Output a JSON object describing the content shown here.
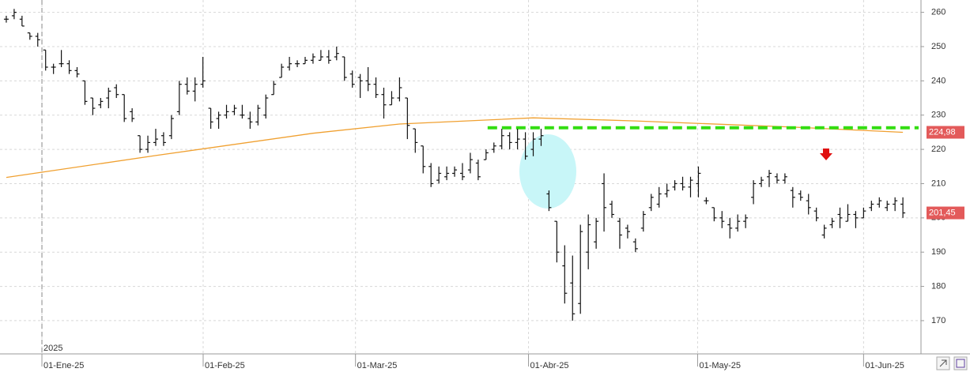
{
  "chart_data": {
    "type": "ohlc",
    "ohlc": [
      [
        258,
        259,
        257,
        258
      ],
      [
        259,
        261,
        258,
        260
      ],
      [
        258,
        259,
        256,
        256
      ],
      [
        254,
        254,
        252,
        253
      ],
      [
        253,
        254,
        250,
        252
      ],
      [
        249,
        249,
        243,
        244
      ],
      [
        244,
        245,
        242,
        244
      ],
      [
        245,
        249,
        244,
        245
      ],
      [
        245,
        246,
        242,
        243
      ],
      [
        243,
        244,
        241,
        242
      ],
      [
        240,
        240,
        233,
        234
      ],
      [
        235,
        235,
        230,
        232
      ],
      [
        233,
        235,
        232,
        234
      ],
      [
        235,
        238,
        232,
        237
      ],
      [
        238,
        239,
        235,
        236
      ],
      [
        236,
        236,
        228,
        229
      ],
      [
        231,
        232,
        228,
        229
      ],
      [
        224,
        224,
        219,
        220
      ],
      [
        220,
        224,
        219,
        222
      ],
      [
        222,
        226,
        221,
        223
      ],
      [
        224,
        225,
        221,
        222
      ],
      [
        224,
        230,
        223,
        229
      ],
      [
        231,
        240,
        230,
        239
      ],
      [
        239,
        241,
        236,
        237
      ],
      [
        237,
        241,
        234,
        239
      ],
      [
        239,
        247,
        238,
        240
      ],
      [
        232,
        232,
        226,
        228
      ],
      [
        229,
        231,
        226,
        230
      ],
      [
        230,
        233,
        229,
        231
      ],
      [
        231,
        233,
        230,
        232
      ],
      [
        230,
        233,
        229,
        230
      ],
      [
        229,
        231,
        226,
        228
      ],
      [
        228,
        233,
        227,
        232
      ],
      [
        230,
        236,
        229,
        235
      ],
      [
        236,
        240,
        236,
        239
      ],
      [
        241,
        245,
        241,
        244
      ],
      [
        244,
        247,
        243,
        245
      ],
      [
        245,
        246,
        244,
        245
      ],
      [
        245,
        247,
        245,
        246
      ],
      [
        246,
        248,
        245,
        247
      ],
      [
        246,
        249,
        246,
        247
      ],
      [
        247,
        249,
        245,
        246
      ],
      [
        247,
        250,
        246,
        248
      ],
      [
        247,
        247,
        240,
        241
      ],
      [
        242,
        243,
        238,
        239
      ],
      [
        241,
        242,
        235,
        240
      ],
      [
        240,
        244,
        237,
        239
      ],
      [
        239,
        241,
        235,
        236
      ],
      [
        236,
        238,
        229,
        233
      ],
      [
        233,
        237,
        233,
        235
      ],
      [
        235,
        241,
        234,
        238
      ],
      [
        235,
        235,
        223,
        227
      ],
      [
        226,
        226,
        219,
        222
      ],
      [
        221,
        221,
        213,
        215
      ],
      [
        215,
        216,
        209,
        210
      ],
      [
        211,
        215,
        210,
        213
      ],
      [
        212,
        215,
        211,
        213
      ],
      [
        213,
        215,
        212,
        214
      ],
      [
        213,
        216,
        211,
        212
      ],
      [
        214,
        219,
        213,
        217
      ],
      [
        216,
        217,
        211,
        212
      ],
      [
        217,
        220,
        217,
        219
      ],
      [
        220,
        222,
        219,
        221
      ],
      [
        221,
        226,
        220,
        224
      ],
      [
        224,
        225,
        220,
        222
      ],
      [
        222,
        226,
        220,
        223
      ],
      [
        223,
        225,
        217,
        218
      ],
      [
        220,
        225,
        218,
        223
      ],
      [
        223,
        226,
        221,
        224
      ],
      [
        207,
        208,
        202,
        203
      ],
      [
        199,
        199,
        187,
        190
      ],
      [
        186,
        192,
        175,
        178
      ],
      [
        181,
        189,
        170,
        172
      ],
      [
        175,
        198,
        172,
        196
      ],
      [
        190,
        201,
        185,
        198
      ],
      [
        193,
        200,
        191,
        199
      ],
      [
        210,
        213,
        196,
        203
      ],
      [
        204,
        205,
        200,
        201
      ],
      [
        199,
        200,
        191,
        195
      ],
      [
        197,
        198,
        194,
        196
      ],
      [
        193,
        194,
        190,
        191
      ],
      [
        197,
        202,
        196,
        201
      ],
      [
        203,
        207,
        202,
        206
      ],
      [
        204,
        209,
        203,
        207
      ],
      [
        207,
        210,
        206,
        208
      ],
      [
        209,
        211,
        208,
        210
      ],
      [
        210,
        212,
        208,
        209
      ],
      [
        209,
        212,
        206,
        211
      ],
      [
        210,
        215,
        206,
        213
      ],
      [
        205,
        206,
        204,
        205
      ],
      [
        203,
        203,
        199,
        200
      ],
      [
        200,
        202,
        197,
        199
      ],
      [
        198,
        200,
        194,
        197
      ],
      [
        197,
        201,
        196,
        199
      ],
      [
        199,
        201,
        197,
        200
      ],
      [
        206,
        211,
        204,
        210
      ],
      [
        210,
        212,
        209,
        211
      ],
      [
        212,
        214,
        209,
        213
      ],
      [
        212,
        213,
        210,
        211
      ],
      [
        211,
        213,
        210,
        212
      ],
      [
        208,
        209,
        203,
        206
      ],
      [
        207,
        208,
        205,
        206
      ],
      [
        205,
        207,
        201,
        203
      ],
      [
        202,
        203,
        199,
        200
      ],
      [
        195,
        198,
        194,
        197
      ],
      [
        198,
        200,
        197,
        199
      ],
      [
        201,
        203,
        197,
        200
      ],
      [
        199,
        204,
        199,
        201
      ],
      [
        201,
        202,
        197,
        200
      ],
      [
        200,
        203,
        200,
        202
      ],
      [
        203,
        205,
        202,
        204
      ],
      [
        204,
        206,
        203,
        205
      ],
      [
        203,
        205,
        202,
        204
      ],
      [
        204,
        206,
        202,
        205
      ],
      [
        204,
        206,
        200,
        201.45
      ]
    ],
    "color": "#111111",
    "ma": {
      "x": [
        0,
        19,
        39,
        50,
        67,
        80,
        100,
        114
      ],
      "values": [
        211.8,
        218.2,
        224.7,
        227.4,
        229.2,
        228.3,
        226.5,
        224.98
      ],
      "color": "#f0a030"
    },
    "level": {
      "value": 226.3,
      "from": 61.2,
      "to": 116,
      "color": "#33dd11"
    },
    "price_labels": [
      {
        "value": 224.98,
        "label": "224,98"
      },
      {
        "value": 201.45,
        "label": "201,45"
      }
    ],
    "xlim": [
      -0.8,
      116.3
    ],
    "xticks": [
      {
        "value": 4.53,
        "label": "01-Ene-25"
      },
      {
        "value": 25.03,
        "label": "01-Feb-25"
      },
      {
        "value": 44.4,
        "label": "01-Mar-25"
      },
      {
        "value": 66.4,
        "label": "01-Abr-25"
      },
      {
        "value": 87.9,
        "label": "01-May-25"
      },
      {
        "value": 109,
        "label": "01-Jun-25"
      }
    ],
    "year_marks": [
      {
        "value": 4.53,
        "label": "2025"
      }
    ],
    "ylim": [
      160.3,
      263.6
    ],
    "yticks": [
      170,
      180,
      190,
      200,
      210,
      220,
      230,
      240,
      250,
      260
    ],
    "grid": true
  }
}
